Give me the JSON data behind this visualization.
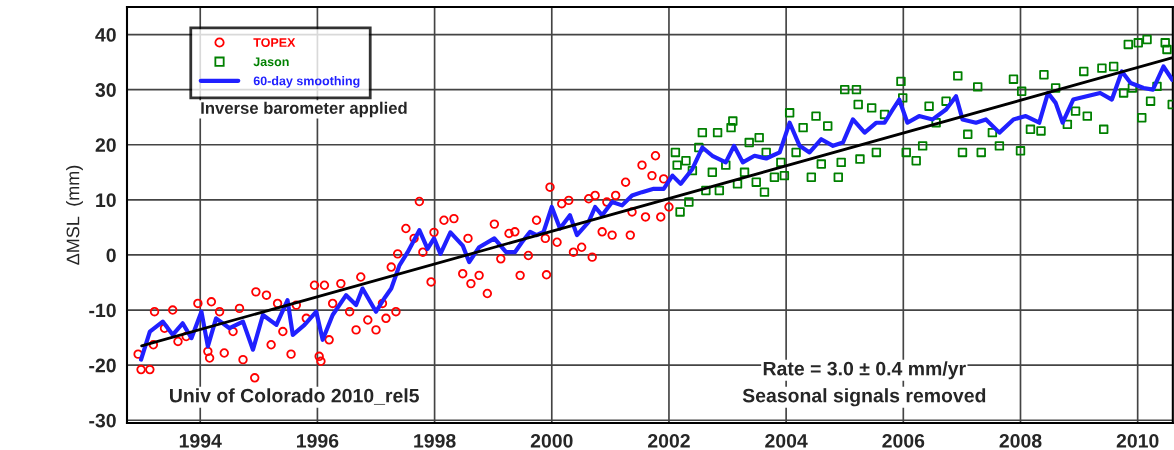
{
  "chart_data": {
    "type": "scatter",
    "ylabel": "ΔMSL  (mm)",
    "xlim": [
      1992.75,
      2010.6
    ],
    "xticks": [
      1994,
      1996,
      1998,
      2000,
      2002,
      2004,
      2006,
      2008,
      2010
    ],
    "ylim": [
      -30.5,
      45
    ],
    "yticks": [
      -30,
      -20,
      -10,
      0,
      10,
      20,
      30,
      40
    ],
    "grid": true,
    "legend": "top left",
    "annotations": [
      "Inverse barometer applied",
      "Univ of Colorado 2010_rel5",
      "Rate = 3.0 ± 0.4 mm/yr",
      "Seasonal signals removed"
    ],
    "series": [
      {
        "name": "TOPEX",
        "marker": "circle",
        "color": "#ff0000",
        "x": [
          1992.94,
          1992.99,
          1993.14,
          1993.2,
          1993.22,
          1993.39,
          1993.53,
          1993.62,
          1993.76,
          1993.96,
          1994.13,
          1994.16,
          1994.19,
          1994.33,
          1994.41,
          1994.56,
          1994.67,
          1994.73,
          1994.93,
          1994.95,
          1995.13,
          1995.21,
          1995.32,
          1995.41,
          1995.55,
          1995.64,
          1995.81,
          1995.95,
          1996.03,
          1996.06,
          1996.12,
          1996.2,
          1996.26,
          1996.4,
          1996.55,
          1996.66,
          1996.74,
          1996.86,
          1997.0,
          1997.11,
          1997.17,
          1997.26,
          1997.34,
          1997.37,
          1997.51,
          1997.65,
          1997.74,
          1997.8,
          1997.94,
          1997.99,
          1998.16,
          1998.33,
          1998.48,
          1998.57,
          1998.62,
          1998.76,
          1998.9,
          1999.02,
          1999.13,
          1999.27,
          1999.37,
          1999.46,
          1999.6,
          1999.74,
          1999.89,
          1999.91,
          1999.97,
          2000.09,
          2000.17,
          2000.29,
          2000.37,
          2000.51,
          2000.63,
          2000.69,
          2000.74,
          2000.86,
          2000.94,
          2001.03,
          2001.09,
          2001.26,
          2001.34,
          2001.37,
          2001.54,
          2001.6,
          2001.71,
          2001.77,
          2001.86,
          2001.91,
          2002.0
        ],
        "values": [
          -18.0,
          -20.8,
          -20.8,
          -16.3,
          -10.3,
          -13.3,
          -10.0,
          -15.7,
          -14.8,
          -8.8,
          -17.5,
          -18.7,
          -8.5,
          -10.3,
          -17.8,
          -13.9,
          -9.7,
          -19.0,
          -22.3,
          -6.7,
          -7.3,
          -16.3,
          -8.8,
          -13.9,
          -18.0,
          -9.1,
          -11.5,
          -5.5,
          -18.4,
          -19.3,
          -5.5,
          -15.4,
          -8.8,
          -5.2,
          -10.3,
          -13.6,
          -4.0,
          -11.8,
          -13.6,
          -8.8,
          -11.5,
          -2.2,
          -10.3,
          0.2,
          4.8,
          3.0,
          9.7,
          0.5,
          -4.9,
          4.1,
          6.3,
          6.6,
          -3.4,
          3.0,
          -5.2,
          -3.7,
          -7.0,
          5.6,
          -0.7,
          3.9,
          4.2,
          -3.7,
          -0.1,
          6.3,
          3.0,
          -3.6,
          12.3,
          2.3,
          9.3,
          9.9,
          0.5,
          1.4,
          10.2,
          -0.4,
          10.8,
          4.2,
          9.6,
          3.6,
          10.8,
          13.2,
          3.6,
          7.8,
          16.3,
          6.9,
          14.4,
          18.0,
          6.9,
          13.8,
          8.7
        ]
      },
      {
        "name": "Jason",
        "marker": "square",
        "color": "#008000",
        "x": [
          2002.11,
          2002.14,
          2002.19,
          2002.29,
          2002.34,
          2002.4,
          2002.51,
          2002.57,
          2002.63,
          2002.74,
          2002.83,
          2002.86,
          2002.97,
          2003.06,
          2003.09,
          2003.17,
          2003.29,
          2003.37,
          2003.49,
          2003.54,
          2003.63,
          2003.66,
          2003.8,
          2003.91,
          2003.97,
          2004.06,
          2004.17,
          2004.29,
          2004.43,
          2004.51,
          2004.6,
          2004.71,
          2004.89,
          2004.94,
          2005.0,
          2005.2,
          2005.23,
          2005.26,
          2005.46,
          2005.54,
          2005.68,
          2005.96,
          2005.99,
          2006.05,
          2006.22,
          2006.33,
          2006.44,
          2006.56,
          2006.73,
          2006.93,
          2007.01,
          2007.1,
          2007.27,
          2007.33,
          2007.52,
          2007.64,
          2007.88,
          2008.0,
          2008.02,
          2008.17,
          2008.35,
          2008.4,
          2008.6,
          2008.8,
          2008.94,
          2009.08,
          2009.14,
          2009.39,
          2009.42,
          2009.59,
          2009.76,
          2009.84,
          2009.91,
          2010.01,
          2010.07,
          2010.16,
          2010.22,
          2010.33,
          2010.47,
          2010.5,
          2010.59
        ],
        "values": [
          18.6,
          16.3,
          7.8,
          17.1,
          9.6,
          15.3,
          19.5,
          22.2,
          11.7,
          15.0,
          22.2,
          11.7,
          16.3,
          23.1,
          24.3,
          12.9,
          15.0,
          20.4,
          13.2,
          21.3,
          11.4,
          18.6,
          14.1,
          16.8,
          14.4,
          25.8,
          18.6,
          23.1,
          14.1,
          25.2,
          16.5,
          23.4,
          14.1,
          16.8,
          30.0,
          30.0,
          27.3,
          17.4,
          26.7,
          18.6,
          25.5,
          31.5,
          28.5,
          18.6,
          17.1,
          19.8,
          27.0,
          24.0,
          27.9,
          32.5,
          18.6,
          21.9,
          30.5,
          18.6,
          22.2,
          19.8,
          31.9,
          18.9,
          29.7,
          22.8,
          22.5,
          32.7,
          30.3,
          23.7,
          26.1,
          33.3,
          25.2,
          33.9,
          22.8,
          34.2,
          29.4,
          38.2,
          30.3,
          38.5,
          24.9,
          39.1,
          27.9,
          30.6,
          38.5,
          37.3,
          27.3
        ]
      },
      {
        "name": "60-day smoothing",
        "type": "line",
        "color": "#2020ff",
        "x": [
          1992.99,
          1993.14,
          1993.36,
          1993.53,
          1993.7,
          1993.85,
          1994.02,
          1994.13,
          1994.27,
          1994.5,
          1994.73,
          1994.9,
          1995.07,
          1995.3,
          1995.49,
          1995.58,
          1995.78,
          1995.98,
          1996.09,
          1996.26,
          1996.49,
          1996.66,
          1996.77,
          1997.0,
          1997.14,
          1997.26,
          1997.4,
          1997.54,
          1997.74,
          1997.88,
          1997.99,
          1998.1,
          1998.27,
          1998.48,
          1998.59,
          1998.76,
          1999.02,
          1999.22,
          1999.37,
          1999.49,
          1999.63,
          1999.74,
          1999.86,
          2000.0,
          2000.14,
          2000.31,
          2000.43,
          2000.63,
          2000.74,
          2000.86,
          2001.03,
          2001.2,
          2001.37,
          2001.54,
          2001.74,
          2001.91,
          2002.06,
          2002.2,
          2002.4,
          2002.57,
          2002.74,
          2002.97,
          2003.11,
          2003.26,
          2003.46,
          2003.66,
          2003.89,
          2004.06,
          2004.23,
          2004.4,
          2004.6,
          2004.8,
          2004.97,
          2005.14,
          2005.34,
          2005.54,
          2005.68,
          2005.82,
          2005.93,
          2006.07,
          2006.27,
          2006.5,
          2006.73,
          2006.9,
          2007.01,
          2007.24,
          2007.41,
          2007.64,
          2007.88,
          2008.09,
          2008.32,
          2008.47,
          2008.6,
          2008.72,
          2008.9,
          2009.13,
          2009.36,
          2009.56,
          2009.73,
          2009.88,
          2010.1,
          2010.26,
          2010.44,
          2010.59
        ],
        "values": [
          -19.0,
          -13.9,
          -12.1,
          -14.5,
          -12.4,
          -15.1,
          -10.3,
          -16.6,
          -11.5,
          -13.3,
          -12.1,
          -17.2,
          -10.9,
          -12.7,
          -8.2,
          -14.5,
          -12.7,
          -10.3,
          -15.4,
          -10.9,
          -7.3,
          -9.1,
          -6.1,
          -10.3,
          -7.9,
          -6.1,
          -1.9,
          0.5,
          4.5,
          1.1,
          3.0,
          0.2,
          4.1,
          1.7,
          -1.3,
          1.4,
          3.0,
          0.5,
          0.5,
          2.3,
          4.2,
          3.6,
          4.2,
          8.7,
          4.8,
          7.2,
          3.6,
          6.0,
          8.7,
          7.2,
          9.6,
          9.0,
          10.8,
          11.4,
          12.0,
          12.0,
          14.4,
          12.9,
          15.6,
          19.5,
          18.0,
          16.8,
          19.8,
          16.8,
          18.0,
          17.5,
          18.6,
          24.0,
          19.8,
          18.6,
          21.0,
          19.8,
          20.4,
          24.6,
          22.2,
          24.0,
          24.0,
          26.4,
          28.2,
          24.0,
          25.2,
          24.6,
          26.4,
          28.8,
          24.6,
          24.0,
          24.6,
          22.2,
          24.6,
          25.2,
          24.0,
          29.4,
          27.6,
          24.0,
          28.2,
          28.8,
          29.4,
          28.2,
          33.3,
          31.2,
          30.3,
          30.0,
          34.2,
          31.8
        ]
      },
      {
        "type": "line",
        "color": "#000000",
        "x": [
          1993.0,
          2010.6
        ],
        "values": [
          -16.5,
          35.8
        ]
      }
    ]
  }
}
